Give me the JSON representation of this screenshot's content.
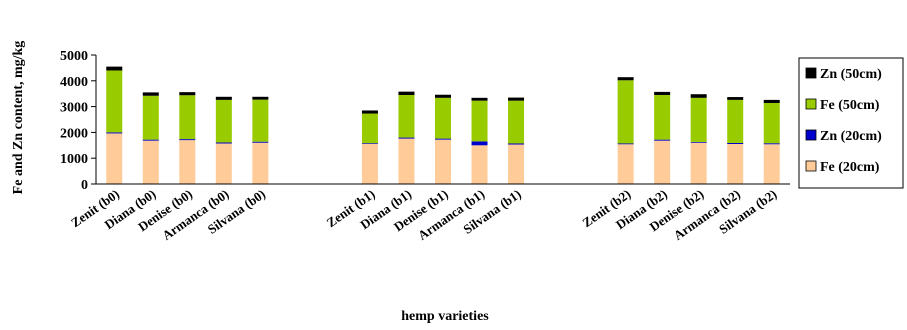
{
  "chart_data": {
    "type": "bar",
    "stacked": true,
    "xlabel": "hemp varieties",
    "ylabel": "Fe and Zn content, mg/kg",
    "ylim": [
      0,
      5000
    ],
    "yticks": [
      0,
      1000,
      2000,
      3000,
      4000,
      5000
    ],
    "grid": false,
    "legend_position": "right",
    "categories": [
      "Zenit (b0)",
      "Diana (b0)",
      "Denise (b0)",
      "Armanca (b0)",
      "Silvana (b0)",
      "",
      "",
      "Zenit (b1)",
      "Diana (b1)",
      "Denise (b1)",
      "Armanca (b1)",
      "Silvana (b1)",
      "",
      "",
      "Zenit (b2)",
      "Diana (b2)",
      "Denise (b2)",
      "Armanca (b2)",
      "Silvana (b2)"
    ],
    "series": [
      {
        "name": "Fe (20cm)",
        "color": "#FFCC99",
        "values": [
          1960,
          1680,
          1700,
          1570,
          1600,
          0,
          0,
          1550,
          1760,
          1720,
          1500,
          1530,
          0,
          0,
          1540,
          1680,
          1600,
          1550,
          1540
        ]
      },
      {
        "name": "Zn (20cm)",
        "color": "#0000CC",
        "values": [
          40,
          40,
          40,
          40,
          40,
          0,
          0,
          30,
          40,
          40,
          150,
          40,
          0,
          0,
          30,
          40,
          30,
          40,
          40
        ]
      },
      {
        "name": "Fe (50cm)",
        "color": "#99CC00",
        "values": [
          2400,
          1700,
          1700,
          1650,
          1630,
          0,
          0,
          1150,
          1650,
          1580,
          1580,
          1660,
          0,
          0,
          2450,
          1730,
          1710,
          1670,
          1560
        ]
      },
      {
        "name": "Zn (50cm)",
        "color": "#000000",
        "values": [
          150,
          130,
          120,
          120,
          110,
          0,
          0,
          120,
          130,
          120,
          110,
          120,
          0,
          0,
          120,
          120,
          140,
          110,
          120
        ]
      }
    ],
    "legend_order": [
      "Zn (50cm)",
      "Fe (50cm)",
      "Zn (20cm)",
      "Fe (20cm)"
    ]
  }
}
